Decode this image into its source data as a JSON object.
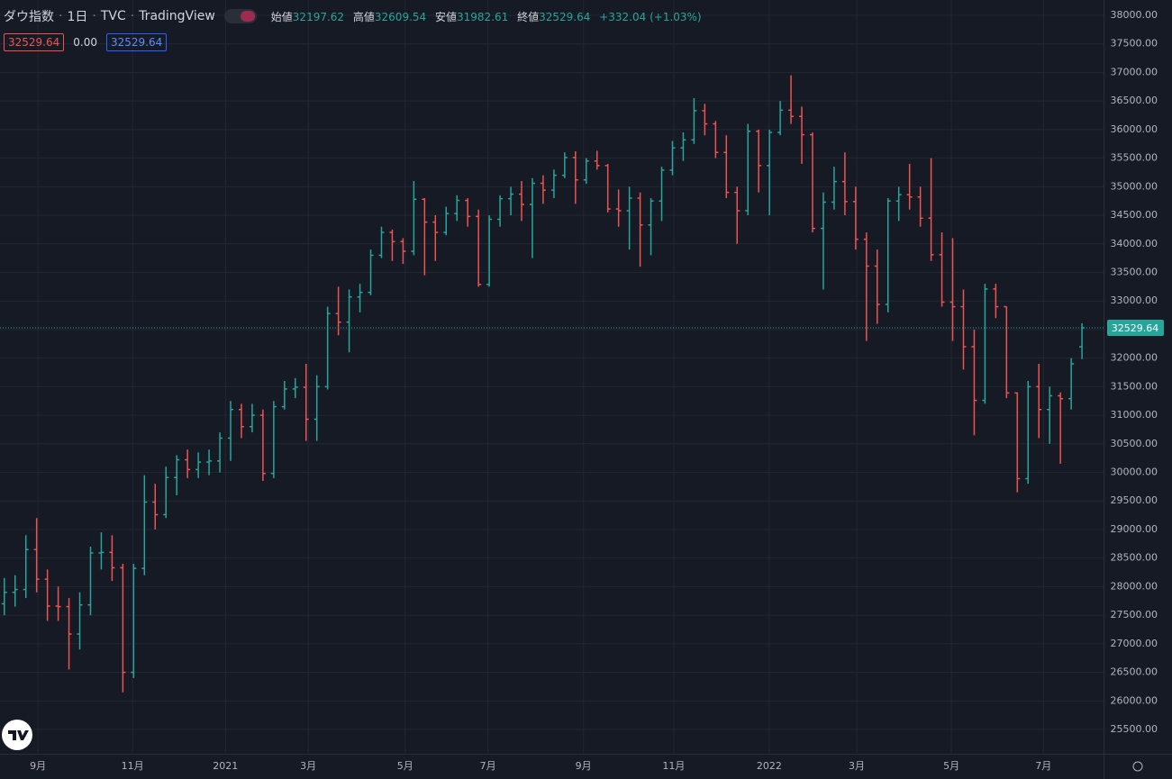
{
  "chart_data": {
    "type": "ohlc",
    "title": "ダウ指数",
    "interval": "1日",
    "source": "TVC",
    "platform": "TradingView",
    "ohlc_labels": [
      "始値",
      "高値",
      "安値",
      "終値"
    ],
    "change": "+332.04 (+1.03%)",
    "indicator_values": [
      "32529.64",
      "0.00",
      "32529.64"
    ],
    "up_color": "#26a69a",
    "down_color": "#ef5350",
    "grid": true,
    "xlim": [
      0,
      512
    ],
    "ylim": [
      25090,
      38268
    ],
    "xticks": [
      {
        "value": 17.6,
        "label": "9月"
      },
      {
        "value": 61.5,
        "label": "11月"
      },
      {
        "value": 104.6,
        "label": "2021"
      },
      {
        "value": 143,
        "label": "3月"
      },
      {
        "value": 188,
        "label": "5月"
      },
      {
        "value": 226.4,
        "label": "7月"
      },
      {
        "value": 270.7,
        "label": "9月"
      },
      {
        "value": 312.6,
        "label": "11月"
      },
      {
        "value": 356.9,
        "label": "2022"
      },
      {
        "value": 397.5,
        "label": "3月"
      },
      {
        "value": 441.4,
        "label": "5月"
      },
      {
        "value": 484.1,
        "label": "7月"
      }
    ],
    "yticks": [
      {
        "value": 25500,
        "label": "25500.00"
      },
      {
        "value": 26000,
        "label": "26000.00"
      },
      {
        "value": 26500,
        "label": "26500.00"
      },
      {
        "value": 27000,
        "label": "27000.00"
      },
      {
        "value": 27500,
        "label": "27500.00"
      },
      {
        "value": 28000,
        "label": "28000.00"
      },
      {
        "value": 28500,
        "label": "28500.00"
      },
      {
        "value": 29000,
        "label": "29000.00"
      },
      {
        "value": 29500,
        "label": "29500.00"
      },
      {
        "value": 30000,
        "label": "30000.00"
      },
      {
        "value": 30500,
        "label": "30500.00"
      },
      {
        "value": 31000,
        "label": "31000.00"
      },
      {
        "value": 31500,
        "label": "31500.00"
      },
      {
        "value": 32000,
        "label": "32000.00"
      },
      {
        "value": 32500,
        "label": "32500.00"
      },
      {
        "value": 33000,
        "label": "33000.00"
      },
      {
        "value": 33500,
        "label": "33500.00"
      },
      {
        "value": 34000,
        "label": "34000.00"
      },
      {
        "value": 34500,
        "label": "34500.00"
      },
      {
        "value": 35000,
        "label": "35000.00"
      },
      {
        "value": 35500,
        "label": "35500.00"
      },
      {
        "value": 36000,
        "label": "36000.00"
      },
      {
        "value": 36500,
        "label": "36500.00"
      },
      {
        "value": 37000,
        "label": "37000.00"
      },
      {
        "value": 37500,
        "label": "37500.00"
      },
      {
        "value": 38000,
        "label": "38000.00"
      }
    ],
    "x": [
      2,
      7,
      12,
      17,
      22,
      27,
      32,
      37,
      42,
      47,
      52,
      57,
      62,
      67,
      72,
      77,
      82,
      87,
      92,
      97,
      102,
      107,
      112,
      117,
      122,
      127,
      132,
      137,
      142,
      147,
      152,
      157,
      162,
      167,
      172,
      177,
      182,
      187,
      192,
      197,
      202,
      207,
      212,
      217,
      222,
      227,
      232,
      237,
      242,
      247,
      252,
      257,
      262,
      267,
      272,
      277,
      282,
      287,
      292,
      297,
      302,
      307,
      312,
      317,
      322,
      327,
      332,
      337,
      342,
      347,
      352,
      357,
      362,
      367,
      372,
      377,
      382,
      387,
      392,
      397,
      402,
      407,
      412,
      417,
      422,
      427,
      432,
      437,
      442,
      447,
      452,
      457,
      462,
      467,
      472,
      477,
      482,
      487,
      492,
      497,
      502
    ],
    "open": [
      27700,
      27900,
      27950,
      28650,
      28130,
      27660,
      27650,
      27170,
      27680,
      28590,
      28600,
      28330,
      26500,
      28320,
      29480,
      29260,
      29910,
      30220,
      30050,
      30180,
      30200,
      30600,
      31100,
      30800,
      31000,
      29980,
      31150,
      31460,
      31490,
      30930,
      31500,
      32780,
      32630,
      33070,
      33150,
      33800,
      34200,
      34040,
      33870,
      34780,
      34380,
      34200,
      34530,
      34760,
      34480,
      33290,
      34430,
      34790,
      34870,
      34690,
      35060,
      34940,
      35200,
      35510,
      35120,
      35450,
      35370,
      34610,
      34580,
      34800,
      34330,
      34750,
      35290,
      35680,
      35820,
      36330,
      36100,
      35600,
      34900,
      34580,
      35970,
      35370,
      35950,
      36340,
      36230,
      35910,
      34270,
      34730,
      35090,
      34740,
      34080,
      33610,
      32940,
      34750,
      34860,
      34820,
      34450,
      33810,
      32980,
      32900,
      32200,
      31260,
      33210,
      32900,
      31390,
      29890,
      31500,
      31100,
      31340,
      31290,
      32197.62
    ],
    "high": [
      28150,
      28200,
      28900,
      29200,
      28300,
      28000,
      27800,
      27900,
      28700,
      28950,
      28900,
      28400,
      28400,
      29950,
      29800,
      30100,
      30300,
      30400,
      30350,
      30400,
      30700,
      31250,
      31200,
      31200,
      31100,
      31250,
      31600,
      31650,
      31900,
      31700,
      32900,
      33250,
      33200,
      33300,
      33900,
      34300,
      34250,
      34100,
      35100,
      34800,
      34500,
      34650,
      34850,
      34800,
      34600,
      34500,
      34850,
      35000,
      35100,
      35150,
      35200,
      35300,
      35600,
      35620,
      35500,
      35630,
      35400,
      34950,
      35000,
      34900,
      34800,
      35350,
      35800,
      35950,
      36550,
      36450,
      36150,
      35900,
      35000,
      36100,
      36000,
      36000,
      36500,
      36950,
      36400,
      35950,
      34900,
      35350,
      35600,
      35000,
      34200,
      33900,
      34800,
      35000,
      35400,
      35000,
      35500,
      34200,
      34100,
      33200,
      32500,
      33300,
      33300,
      32900,
      31400,
      31600,
      31900,
      31500,
      31400,
      32000,
      32609.54
    ],
    "low": [
      27500,
      27650,
      27800,
      27900,
      27400,
      27400,
      26550,
      26900,
      27500,
      28300,
      28100,
      26150,
      26400,
      28200,
      29000,
      29200,
      29600,
      29900,
      29900,
      29950,
      30000,
      30200,
      30600,
      30700,
      29850,
      29900,
      31100,
      31300,
      30550,
      30550,
      31450,
      32400,
      32100,
      32800,
      33100,
      33750,
      33700,
      33650,
      33800,
      33450,
      33700,
      34150,
      34400,
      34300,
      33250,
      33250,
      34300,
      34500,
      34400,
      33750,
      34700,
      34800,
      35150,
      34700,
      35050,
      35300,
      34550,
      34300,
      33900,
      33600,
      33800,
      34400,
      35200,
      35450,
      35750,
      35900,
      35500,
      34800,
      34000,
      34500,
      34900,
      34500,
      35900,
      36100,
      35400,
      34200,
      33200,
      34600,
      34500,
      33900,
      32300,
      32600,
      32800,
      34400,
      34600,
      34300,
      33700,
      32900,
      32300,
      31800,
      30650,
      31200,
      32700,
      31300,
      29650,
      29800,
      30600,
      30500,
      30150,
      31100,
      31982.61
    ],
    "close": [
      27900,
      27950,
      28650,
      28130,
      27660,
      27650,
      27170,
      27680,
      28590,
      28600,
      28330,
      26500,
      28320,
      29480,
      29260,
      29910,
      30220,
      30050,
      30180,
      30200,
      30600,
      31100,
      30800,
      31000,
      29980,
      31150,
      31460,
      31490,
      30930,
      31500,
      32780,
      32630,
      33070,
      33150,
      33800,
      34200,
      34040,
      33870,
      34780,
      34380,
      34200,
      34530,
      34760,
      34480,
      33290,
      34430,
      34790,
      34870,
      34690,
      35060,
      34940,
      35200,
      35510,
      35120,
      35450,
      35370,
      34610,
      34580,
      34800,
      34330,
      34750,
      35290,
      35680,
      35820,
      36330,
      36100,
      35600,
      34900,
      34580,
      35970,
      35370,
      35950,
      36340,
      36230,
      35910,
      34270,
      34730,
      35090,
      34740,
      34080,
      33610,
      32940,
      34750,
      34860,
      34820,
      34450,
      33810,
      32980,
      32900,
      32200,
      31260,
      33210,
      32900,
      31390,
      29890,
      31500,
      31100,
      31340,
      31290,
      31900,
      32529.64
    ]
  }
}
